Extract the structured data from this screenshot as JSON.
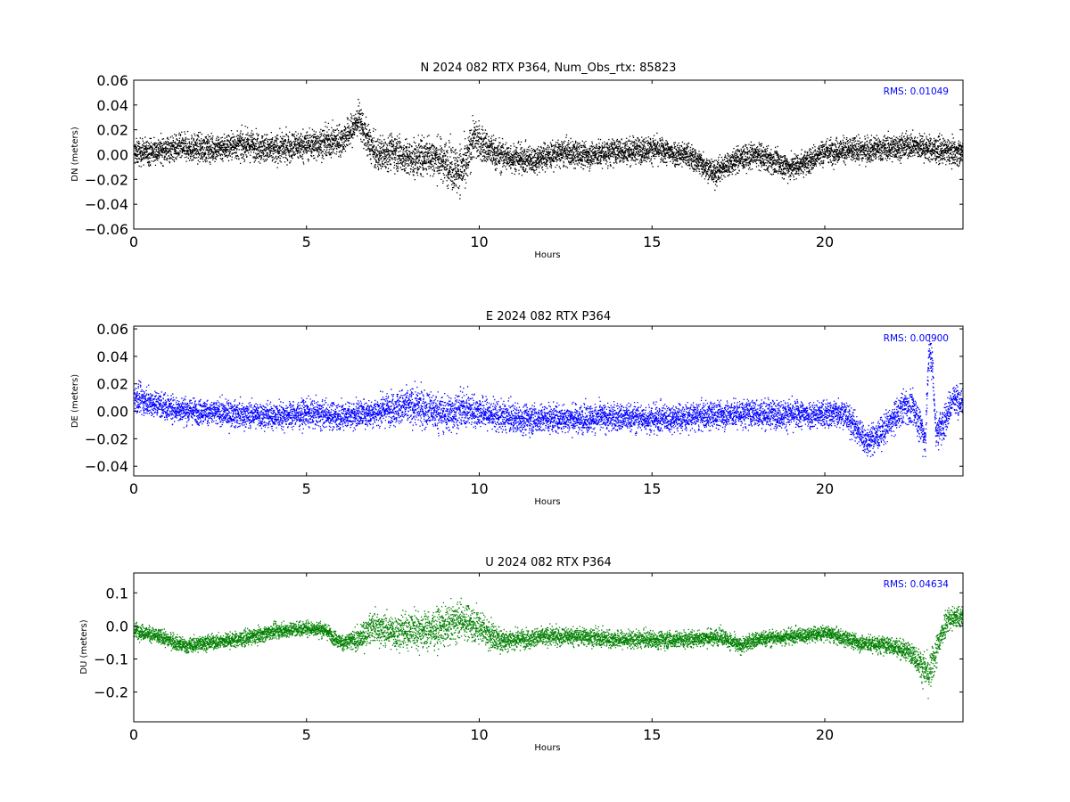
{
  "chart_data": [
    {
      "type": "scatter",
      "title": "N 2024 082 RTX  P364, Num_Obs_rtx: 85823",
      "xlabel": "Hours",
      "ylabel": "DN (meters)",
      "xlim": [
        0,
        24
      ],
      "ylim": [
        -0.06,
        0.06
      ],
      "xticks": [
        "0",
        "5",
        "10",
        "15",
        "20"
      ],
      "xtick_values": [
        0,
        5,
        10,
        15,
        20
      ],
      "yticks": [
        "−0.06",
        "−0.04",
        "−0.02",
        "0.00",
        "0.02",
        "0.04",
        "0.06"
      ],
      "ytick_values": [
        -0.06,
        -0.04,
        -0.02,
        0,
        0.02,
        0.04,
        0.06
      ],
      "rms_text": "RMS:  0.01049",
      "color": "#000000",
      "rms_color": "#0000ff",
      "grid": false,
      "series": [
        {
          "profile_x": [
            0,
            0.5,
            1,
            1.5,
            2,
            2.5,
            3,
            3.5,
            4,
            4.5,
            5,
            5.5,
            6,
            6.3,
            6.5,
            6.7,
            7,
            7.5,
            8,
            8.5,
            9,
            9.3,
            9.6,
            9.8,
            10,
            10.5,
            11,
            11.5,
            12,
            12.5,
            13,
            13.5,
            14,
            14.5,
            15,
            15.5,
            16,
            16.5,
            16.8,
            17,
            17.5,
            18,
            18.5,
            19,
            19.5,
            20,
            20.5,
            21,
            21.5,
            22,
            22.5,
            23,
            23.5,
            24
          ],
          "profile_y": [
            0.002,
            0.003,
            0.005,
            0.006,
            0.005,
            0.006,
            0.008,
            0.008,
            0.004,
            0.007,
            0.008,
            0.01,
            0.012,
            0.02,
            0.03,
            0.015,
            0.0,
            0.004,
            -0.004,
            0.0,
            -0.005,
            -0.012,
            -0.01,
            0.015,
            0.01,
            0.0,
            -0.002,
            -0.004,
            0.0,
            0.002,
            0.0,
            0.001,
            0.003,
            0.004,
            0.005,
            0.002,
            0.0,
            -0.008,
            -0.015,
            -0.01,
            -0.003,
            0.0,
            -0.005,
            -0.01,
            -0.005,
            0.003,
            0.004,
            0.004,
            0.005,
            0.006,
            0.008,
            0.005,
            0.003,
            0.002
          ],
          "spread_x": [
            0,
            3,
            6,
            8,
            9,
            9.5,
            10,
            11,
            15,
            20,
            24
          ],
          "spread_y": [
            0.009,
            0.01,
            0.011,
            0.013,
            0.015,
            0.018,
            0.013,
            0.01,
            0.009,
            0.009,
            0.009
          ]
        }
      ]
    },
    {
      "type": "scatter",
      "title": "E 2024 082 RTX  P364",
      "xlabel": "Hours",
      "ylabel": "DE (meters)",
      "xlim": [
        0,
        24
      ],
      "ylim": [
        -0.047,
        0.062
      ],
      "xticks": [
        "0",
        "5",
        "10",
        "15",
        "20"
      ],
      "xtick_values": [
        0,
        5,
        10,
        15,
        20
      ],
      "yticks": [
        "−0.04",
        "−0.02",
        "0.00",
        "0.02",
        "0.04",
        "0.06"
      ],
      "ytick_values": [
        -0.04,
        -0.02,
        0,
        0.02,
        0.04,
        0.06
      ],
      "rms_text": "RMS:  0.00900",
      "color": "#0000ff",
      "rms_color": "#0000ff",
      "grid": false,
      "series": [
        {
          "profile_x": [
            0,
            0.3,
            0.6,
            1,
            1.5,
            2,
            3,
            4,
            5,
            6,
            7,
            7.5,
            8,
            8.5,
            9,
            9.5,
            10,
            10.5,
            11,
            12,
            13,
            14,
            15,
            16,
            17,
            18,
            19,
            20,
            20.5,
            21,
            21.2,
            21.5,
            21.8,
            22,
            22.3,
            22.6,
            22.9,
            23.0,
            23.1,
            23.2,
            23.4,
            23.7,
            24
          ],
          "profile_y": [
            0.01,
            0.008,
            0.006,
            0.003,
            0.001,
            0.0,
            -0.002,
            -0.003,
            -0.001,
            -0.003,
            0.0,
            0.003,
            0.004,
            0.002,
            -0.002,
            0.002,
            0.0,
            -0.003,
            -0.005,
            -0.005,
            -0.005,
            -0.004,
            -0.005,
            -0.004,
            -0.002,
            -0.001,
            -0.002,
            -0.002,
            0.0,
            -0.015,
            -0.022,
            -0.018,
            -0.01,
            -0.005,
            0.005,
            0.0,
            -0.02,
            0.045,
            0.035,
            -0.015,
            -0.01,
            0.01,
            0.005
          ],
          "spread_x": [
            0,
            2,
            7,
            8,
            9,
            10,
            12,
            20,
            22,
            23,
            24
          ],
          "spread_y": [
            0.009,
            0.008,
            0.009,
            0.012,
            0.012,
            0.01,
            0.009,
            0.009,
            0.01,
            0.012,
            0.01
          ]
        }
      ]
    },
    {
      "type": "scatter",
      "title": "U 2024 082 RTX  P364",
      "xlabel": "Hours",
      "ylabel": "DU (meters)",
      "xlim": [
        0,
        24
      ],
      "ylim": [
        -0.29,
        0.16
      ],
      "xticks": [
        "0",
        "5",
        "10",
        "15",
        "20"
      ],
      "xtick_values": [
        0,
        5,
        10,
        15,
        20
      ],
      "yticks": [
        "−0.2",
        "−0.1",
        "0.0",
        "0.1"
      ],
      "ytick_values": [
        -0.2,
        -0.1,
        0,
        0.1
      ],
      "rms_text": "RMS:  0.04634",
      "color": "#008000",
      "rms_color": "#0000ff",
      "grid": false,
      "series": [
        {
          "profile_x": [
            0,
            0.5,
            1,
            1.5,
            2,
            3,
            3.5,
            4,
            4.5,
            5,
            5.5,
            6,
            6.5,
            6.9,
            7.5,
            8,
            8.5,
            9,
            9.5,
            10,
            10.5,
            11,
            12,
            13,
            14,
            15,
            16,
            17,
            17.5,
            18,
            19,
            20,
            21,
            22,
            22.5,
            22.8,
            23.0,
            23.2,
            23.5,
            24
          ],
          "profile_y": [
            -0.01,
            -0.025,
            -0.04,
            -0.06,
            -0.05,
            -0.04,
            -0.03,
            -0.015,
            -0.01,
            -0.005,
            -0.01,
            -0.05,
            -0.04,
            0.0,
            -0.02,
            -0.01,
            -0.01,
            0.0,
            0.02,
            0.0,
            -0.04,
            -0.04,
            -0.03,
            -0.03,
            -0.04,
            -0.04,
            -0.04,
            -0.03,
            -0.06,
            -0.04,
            -0.03,
            -0.02,
            -0.05,
            -0.06,
            -0.08,
            -0.12,
            -0.15,
            -0.08,
            0.02,
            0.03
          ],
          "spread_x": [
            0,
            6,
            7,
            8,
            9,
            10,
            11,
            20,
            22.5,
            23,
            24
          ],
          "spread_y": [
            0.02,
            0.02,
            0.04,
            0.05,
            0.05,
            0.045,
            0.025,
            0.02,
            0.025,
            0.05,
            0.025
          ]
        }
      ]
    }
  ]
}
